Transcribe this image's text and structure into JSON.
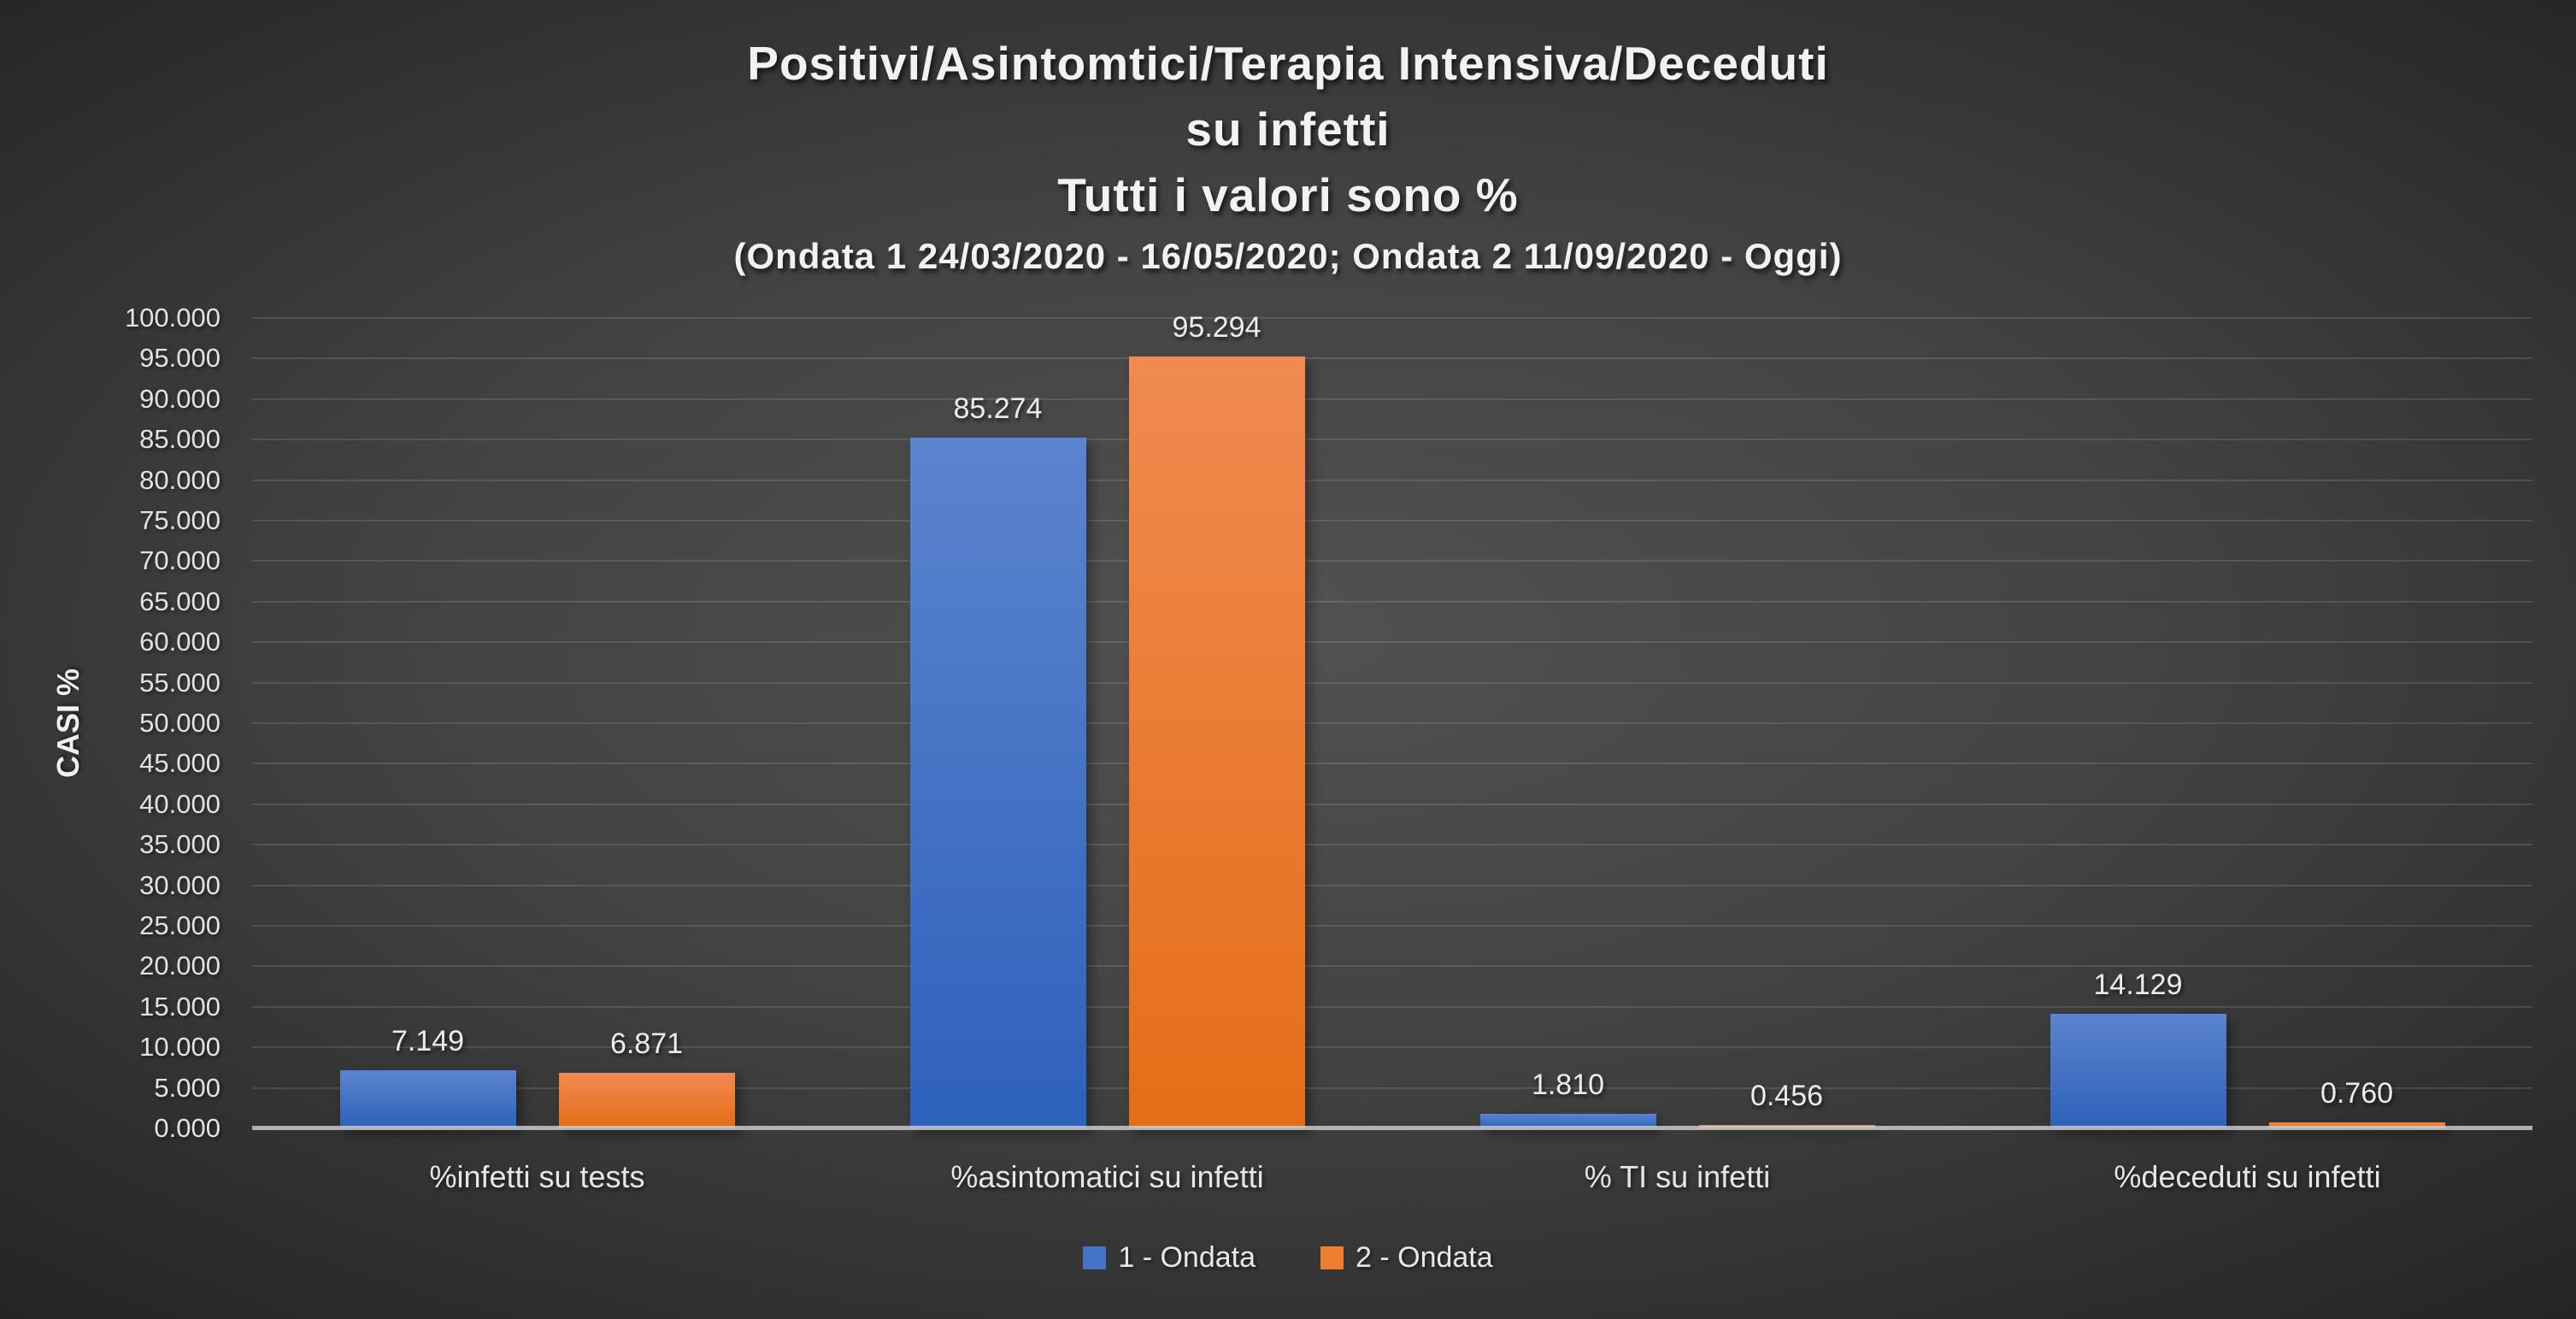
{
  "title": {
    "line1": "Positivi/Asintomtici/Terapia Intensiva/Deceduti",
    "line2": "su infetti",
    "line3": "Tutti i valori sono %",
    "line4": "(Ondata 1 24/03/2020 - 16/05/2020; Ondata 2 11/09/2020 - Oggi)"
  },
  "chart_data": {
    "type": "bar",
    "categories": [
      "%infetti su tests",
      "%asintomatici su infetti",
      "% TI su infetti",
      "%deceduti su infetti"
    ],
    "series": [
      {
        "name": "1 - Ondata",
        "color": "#4472C4",
        "gradient_top": "#5b84ce",
        "gradient_bottom": "#2e61bb",
        "values": [
          7.149,
          85.274,
          1.81,
          14.129
        ],
        "labels": [
          "7.149",
          "85.274",
          "1.810",
          "14.129"
        ]
      },
      {
        "name": "2 - Ondata",
        "color": "#ED7D31",
        "gradient_top": "#f18a50",
        "gradient_bottom": "#e56d17",
        "values": [
          6.871,
          95.294,
          0.456,
          0.76
        ],
        "labels": [
          "6.871",
          "95.294",
          "0.456",
          "0.760"
        ]
      }
    ],
    "ylabel": "CASI %",
    "ylim": [
      0,
      100
    ],
    "ytick_step": 5,
    "ytick_decimals": 3,
    "grid": true,
    "legend_position": "bottom"
  },
  "colors": {
    "background_center": "#515151",
    "background_edge": "#242424",
    "gridline": "rgba(255,255,255,0.12)",
    "axis_line": "#cdced2",
    "text": "#e8e8e8"
  }
}
